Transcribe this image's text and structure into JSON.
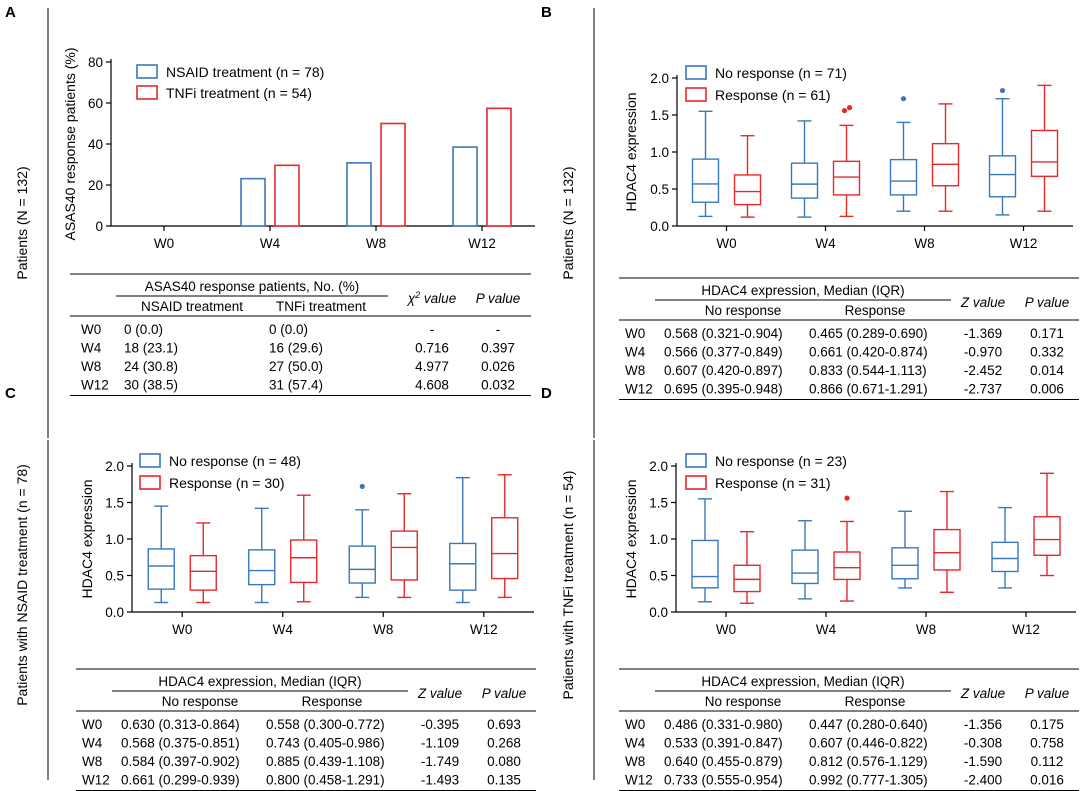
{
  "colors": {
    "nsaid_blue": "#3a78bd",
    "tnfi_red": "#e8282c",
    "axis": "#000000"
  },
  "chart_data": [
    {
      "panel": "A",
      "type": "bar",
      "row_title": "Patients (N = 132)",
      "ylabel": "ASAS40 response patients (%)",
      "xlabel": "",
      "ylim": [
        0,
        80
      ],
      "yticks": [
        "0",
        "20",
        "40",
        "60",
        "80"
      ],
      "categories": [
        "W0",
        "W4",
        "W8",
        "W12"
      ],
      "series": [
        {
          "name": "NSAID treatment (n = 78)",
          "color": "#3a78bd",
          "values": [
            0,
            23.1,
            30.8,
            38.5
          ]
        },
        {
          "name": "TNFi treatment (n = 54)",
          "color": "#e8282c",
          "values": [
            0,
            29.6,
            50.0,
            57.4
          ]
        }
      ],
      "legend_position": "top-left",
      "table": {
        "group_header": "ASAS40 response patients, No. (%)",
        "subheaders": [
          "NSAID treatment",
          "TNFi treatment"
        ],
        "chi_header": "value",
        "chi_symbol": "χ",
        "chi_sup": "2",
        "p_header_p": "P",
        "p_header_rest": " value",
        "rows": [
          {
            "label": "W0",
            "c1": "0 (0.0)",
            "c2": "0 (0.0)",
            "stat": "-",
            "p": "-"
          },
          {
            "label": "W4",
            "c1": "18 (23.1)",
            "c2": "16 (29.6)",
            "stat": "0.716",
            "p": "0.397"
          },
          {
            "label": "W8",
            "c1": "24 (30.8)",
            "c2": "27 (50.0)",
            "stat": "4.977",
            "p": "0.026"
          },
          {
            "label": "W12",
            "c1": "30 (38.5)",
            "c2": "31 (57.4)",
            "stat": "4.608",
            "p": "0.032"
          }
        ]
      }
    },
    {
      "panel": "B",
      "type": "box",
      "row_title": "Patients (N = 132)",
      "ylabel": "HDAC4 expression",
      "ylim": [
        0,
        2.0
      ],
      "yticks": [
        "0.0",
        "0.5",
        "1.0",
        "1.5",
        "2.0"
      ],
      "categories": [
        "W0",
        "W4",
        "W8",
        "W12"
      ],
      "series": [
        {
          "name": "No response (n = 71)",
          "color": "#3a78bd",
          "boxes": [
            {
              "min": 0.13,
              "q1": 0.321,
              "median": 0.568,
              "q3": 0.904,
              "max": 1.55,
              "outliers": []
            },
            {
              "min": 0.12,
              "q1": 0.377,
              "median": 0.566,
              "q3": 0.849,
              "max": 1.42,
              "outliers": []
            },
            {
              "min": 0.2,
              "q1": 0.42,
              "median": 0.607,
              "q3": 0.897,
              "max": 1.4,
              "outliers": [
                1.72
              ]
            },
            {
              "min": 0.15,
              "q1": 0.395,
              "median": 0.695,
              "q3": 0.948,
              "max": 1.72,
              "outliers": [
                1.83
              ]
            }
          ]
        },
        {
          "name": "Response (n = 61)",
          "color": "#e8282c",
          "boxes": [
            {
              "min": 0.12,
              "q1": 0.289,
              "median": 0.465,
              "q3": 0.69,
              "max": 1.22,
              "outliers": []
            },
            {
              "min": 0.13,
              "q1": 0.42,
              "median": 0.661,
              "q3": 0.874,
              "max": 1.36,
              "outliers": [
                1.56,
                1.6
              ]
            },
            {
              "min": 0.2,
              "q1": 0.544,
              "median": 0.833,
              "q3": 1.113,
              "max": 1.65,
              "outliers": []
            },
            {
              "min": 0.2,
              "q1": 0.671,
              "median": 0.866,
              "q3": 1.291,
              "max": 1.9,
              "outliers": []
            }
          ]
        }
      ],
      "legend_position": "top-left",
      "table": {
        "group_header": "HDAC4 expression, Median (IQR)",
        "subheaders": [
          "No response",
          "Response"
        ],
        "z_header_z": "Z",
        "z_header_rest": " value",
        "p_header_p": "P",
        "p_header_rest": " value",
        "rows": [
          {
            "label": "W0",
            "c1": "0.568 (0.321-0.904)",
            "c2": "0.465 (0.289-0.690)",
            "stat": "-1.369",
            "p": "0.171"
          },
          {
            "label": "W4",
            "c1": "0.566 (0.377-0.849)",
            "c2": "0.661 (0.420-0.874)",
            "stat": "-0.970",
            "p": "0.332"
          },
          {
            "label": "W8",
            "c1": "0.607 (0.420-0.897)",
            "c2": "0.833 (0.544-1.113)",
            "stat": "-2.452",
            "p": "0.014"
          },
          {
            "label": "W12",
            "c1": "0.695 (0.395-0.948)",
            "c2": "0.866 (0.671-1.291)",
            "stat": "-2.737",
            "p": "0.006"
          }
        ]
      }
    },
    {
      "panel": "C",
      "type": "box",
      "row_title": "Patients with NSAID treatment (n = 78)",
      "ylabel": "HDAC4 expression",
      "ylim": [
        0,
        2.0
      ],
      "yticks": [
        "0.0",
        "0.5",
        "1.0",
        "1.5",
        "2.0"
      ],
      "categories": [
        "W0",
        "W4",
        "W8",
        "W12"
      ],
      "series": [
        {
          "name": "No response (n = 48)",
          "color": "#3a78bd",
          "boxes": [
            {
              "min": 0.13,
              "q1": 0.313,
              "median": 0.63,
              "q3": 0.864,
              "max": 1.45,
              "outliers": []
            },
            {
              "min": 0.13,
              "q1": 0.375,
              "median": 0.568,
              "q3": 0.851,
              "max": 1.42,
              "outliers": []
            },
            {
              "min": 0.2,
              "q1": 0.397,
              "median": 0.584,
              "q3": 0.902,
              "max": 1.4,
              "outliers": [
                1.72
              ]
            },
            {
              "min": 0.13,
              "q1": 0.299,
              "median": 0.661,
              "q3": 0.939,
              "max": 1.84,
              "outliers": []
            }
          ]
        },
        {
          "name": "Response (n = 30)",
          "color": "#e8282c",
          "boxes": [
            {
              "min": 0.13,
              "q1": 0.3,
              "median": 0.558,
              "q3": 0.772,
              "max": 1.22,
              "outliers": []
            },
            {
              "min": 0.14,
              "q1": 0.405,
              "median": 0.743,
              "q3": 0.986,
              "max": 1.6,
              "outliers": []
            },
            {
              "min": 0.2,
              "q1": 0.439,
              "median": 0.885,
              "q3": 1.108,
              "max": 1.62,
              "outliers": []
            },
            {
              "min": 0.2,
              "q1": 0.458,
              "median": 0.8,
              "q3": 1.291,
              "max": 1.88,
              "outliers": []
            }
          ]
        }
      ],
      "legend_position": "top-left",
      "table": {
        "group_header": "HDAC4 expression, Median (IQR)",
        "subheaders": [
          "No response",
          "Response"
        ],
        "z_header_z": "Z",
        "z_header_rest": " value",
        "p_header_p": "P",
        "p_header_rest": " value",
        "rows": [
          {
            "label": "W0",
            "c1": "0.630 (0.313-0.864)",
            "c2": "0.558 (0.300-0.772)",
            "stat": "-0.395",
            "p": "0.693"
          },
          {
            "label": "W4",
            "c1": "0.568 (0.375-0.851)",
            "c2": "0.743 (0.405-0.986)",
            "stat": "-1.109",
            "p": "0.268"
          },
          {
            "label": "W8",
            "c1": "0.584 (0.397-0.902)",
            "c2": "0.885 (0.439-1.108)",
            "stat": "-1.749",
            "p": "0.080"
          },
          {
            "label": "W12",
            "c1": "0.661 (0.299-0.939)",
            "c2": "0.800 (0.458-1.291)",
            "stat": "-1.493",
            "p": "0.135"
          }
        ]
      }
    },
    {
      "panel": "D",
      "type": "box",
      "row_title": "Patients with TNFi treatment (n = 54)",
      "ylabel": "HDAC4 expression",
      "ylim": [
        0,
        2.0
      ],
      "yticks": [
        "0.0",
        "0.5",
        "1.0",
        "1.5",
        "2.0"
      ],
      "categories": [
        "W0",
        "W4",
        "W8",
        "W12"
      ],
      "series": [
        {
          "name": "No response (n = 23)",
          "color": "#3a78bd",
          "boxes": [
            {
              "min": 0.14,
              "q1": 0.331,
              "median": 0.486,
              "q3": 0.98,
              "max": 1.55,
              "outliers": []
            },
            {
              "min": 0.18,
              "q1": 0.391,
              "median": 0.533,
              "q3": 0.847,
              "max": 1.25,
              "outliers": []
            },
            {
              "min": 0.33,
              "q1": 0.455,
              "median": 0.64,
              "q3": 0.879,
              "max": 1.38,
              "outliers": []
            },
            {
              "min": 0.33,
              "q1": 0.555,
              "median": 0.733,
              "q3": 0.954,
              "max": 1.43,
              "outliers": []
            }
          ]
        },
        {
          "name": "Response (n = 31)",
          "color": "#e8282c",
          "boxes": [
            {
              "min": 0.12,
              "q1": 0.28,
              "median": 0.447,
              "q3": 0.64,
              "max": 1.1,
              "outliers": []
            },
            {
              "min": 0.15,
              "q1": 0.446,
              "median": 0.607,
              "q3": 0.822,
              "max": 1.24,
              "outliers": [
                1.56
              ]
            },
            {
              "min": 0.27,
              "q1": 0.576,
              "median": 0.812,
              "q3": 1.129,
              "max": 1.65,
              "outliers": []
            },
            {
              "min": 0.5,
              "q1": 0.777,
              "median": 0.992,
              "q3": 1.305,
              "max": 1.9,
              "outliers": []
            }
          ]
        }
      ],
      "legend_position": "top-left",
      "table": {
        "group_header": "HDAC4 expression, Median (IQR)",
        "subheaders": [
          "No response",
          "Response"
        ],
        "z_header_z": "Z",
        "z_header_rest": " value",
        "p_header_p": "P",
        "p_header_rest": " value",
        "rows": [
          {
            "label": "W0",
            "c1": "0.486 (0.331-0.980)",
            "c2": "0.447 (0.280-0.640)",
            "stat": "-1.356",
            "p": "0.175"
          },
          {
            "label": "W4",
            "c1": "0.533 (0.391-0.847)",
            "c2": "0.607 (0.446-0.822)",
            "stat": "-0.308",
            "p": "0.758"
          },
          {
            "label": "W8",
            "c1": "0.640 (0.455-0.879)",
            "c2": "0.812 (0.576-1.129)",
            "stat": "-1.590",
            "p": "0.112"
          },
          {
            "label": "W12",
            "c1": "0.733 (0.555-0.954)",
            "c2": "0.992 (0.777-1.305)",
            "stat": "-2.400",
            "p": "0.016"
          }
        ]
      }
    }
  ]
}
